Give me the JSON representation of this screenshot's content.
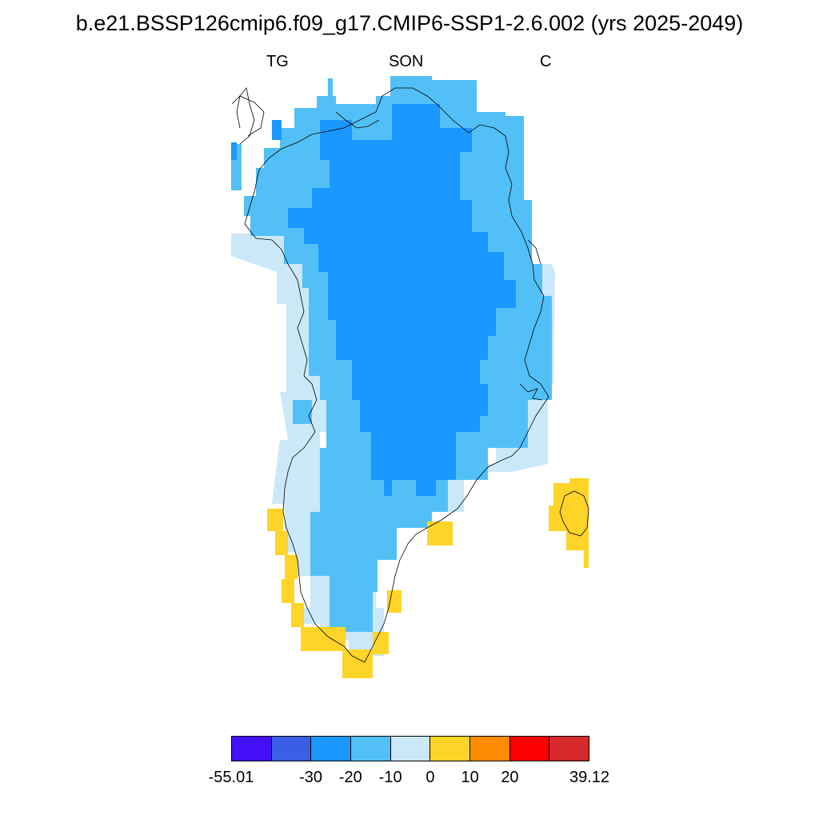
{
  "title": "b.e21.BSSP126cmip6.f09_g17.CMIP6-SSP1-2.6.002 (yrs 2025-2049)",
  "labels": {
    "left": "TG",
    "center": "SON",
    "right": "C"
  },
  "colorbar": {
    "colors": [
      "#4410f8",
      "#3a5ee4",
      "#1a98ff",
      "#52c0f6",
      "#cbe8f8",
      "#fed428",
      "#ff8c00",
      "#ff0000",
      "#d62a2a"
    ],
    "labels": [
      "-55.01",
      "-30",
      "-20",
      "-10",
      "0",
      "10",
      "20",
      "39.12"
    ]
  },
  "map": {
    "region": "Greenland",
    "category_colors": {
      "le_-20": "#1a98ff",
      "-20_-10": "#52c0f6",
      "-10_0": "#cbe8f8",
      "0_10": "#fed428"
    }
  }
}
